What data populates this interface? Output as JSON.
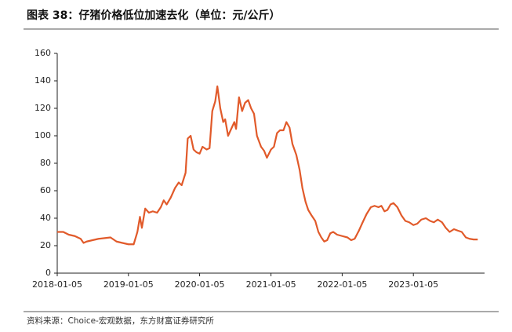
{
  "chart_data": {
    "type": "line",
    "title": "图表 38：仔猪价格低位加速去化（单位：元/公斤）",
    "source": "资料来源：Choice-宏观数据，东方财富证券研究所",
    "xlim": [
      "2018-01-05",
      "2024-01-05"
    ],
    "xticks": [
      "2018-01-05",
      "2019-01-05",
      "2020-01-05",
      "2021-01-05",
      "2022-01-05",
      "2023-01-05"
    ],
    "ylim": [
      0,
      160
    ],
    "yticks": [
      0,
      20,
      40,
      60,
      80,
      100,
      120,
      140,
      160
    ],
    "grid": false,
    "x": [
      "2018-01-05",
      "2018-02-05",
      "2018-03-05",
      "2018-04-05",
      "2018-05-05",
      "2018-05-20",
      "2018-06-05",
      "2018-07-05",
      "2018-08-05",
      "2018-09-05",
      "2018-10-05",
      "2018-11-05",
      "2018-12-05",
      "2019-01-05",
      "2019-02-01",
      "2019-02-20",
      "2019-03-05",
      "2019-03-15",
      "2019-04-01",
      "2019-04-20",
      "2019-05-10",
      "2019-06-01",
      "2019-06-20",
      "2019-07-05",
      "2019-07-20",
      "2019-08-10",
      "2019-09-01",
      "2019-09-20",
      "2019-10-05",
      "2019-10-25",
      "2019-11-05",
      "2019-11-20",
      "2019-12-05",
      "2019-12-20",
      "2020-01-05",
      "2020-01-20",
      "2020-02-10",
      "2020-02-25",
      "2020-03-10",
      "2020-03-25",
      "2020-04-05",
      "2020-04-20",
      "2020-05-05",
      "2020-05-15",
      "2020-05-30",
      "2020-06-15",
      "2020-07-01",
      "2020-07-10",
      "2020-07-25",
      "2020-08-10",
      "2020-08-25",
      "2020-09-10",
      "2020-09-25",
      "2020-10-10",
      "2020-10-25",
      "2020-11-15",
      "2020-12-01",
      "2020-12-15",
      "2021-01-05",
      "2021-01-20",
      "2021-02-05",
      "2021-02-20",
      "2021-03-10",
      "2021-03-25",
      "2021-04-10",
      "2021-04-25",
      "2021-05-15",
      "2021-06-01",
      "2021-06-15",
      "2021-07-01",
      "2021-07-15",
      "2021-08-01",
      "2021-08-20",
      "2021-09-05",
      "2021-09-20",
      "2021-10-05",
      "2021-10-20",
      "2021-11-05",
      "2021-11-20",
      "2021-12-10",
      "2022-01-05",
      "2022-02-01",
      "2022-02-20",
      "2022-03-10",
      "2022-04-01",
      "2022-04-20",
      "2022-05-10",
      "2022-06-01",
      "2022-06-20",
      "2022-07-10",
      "2022-07-25",
      "2022-08-10",
      "2022-08-25",
      "2022-09-10",
      "2022-09-25",
      "2022-10-15",
      "2022-11-05",
      "2022-11-25",
      "2022-12-15",
      "2023-01-05",
      "2023-01-25",
      "2023-02-15",
      "2023-03-10",
      "2023-04-01",
      "2023-04-20",
      "2023-05-10",
      "2023-06-01",
      "2023-06-20",
      "2023-07-10",
      "2023-08-01",
      "2023-08-20",
      "2023-09-10",
      "2023-10-01",
      "2023-10-20",
      "2023-11-10",
      "2023-12-01"
    ],
    "series": [
      {
        "name": "仔猪价格",
        "color": "#e15a2a",
        "values": [
          30,
          30,
          28,
          27,
          25,
          22,
          23,
          24,
          25,
          25.5,
          26,
          23,
          22,
          21,
          21,
          30,
          41,
          33,
          47,
          44,
          45,
          44,
          48,
          53,
          50,
          55,
          62,
          66,
          64,
          73,
          98,
          100,
          90,
          88,
          87,
          92,
          90,
          91,
          118,
          125,
          136,
          120,
          110,
          112,
          100,
          105,
          110,
          105,
          128,
          118,
          124,
          126,
          120,
          116,
          100,
          92,
          89,
          84,
          90,
          92,
          102,
          104,
          104,
          110,
          106,
          94,
          86,
          75,
          62,
          52,
          46,
          42,
          38,
          30,
          26,
          23,
          24,
          29,
          30,
          28,
          27,
          26,
          24,
          25,
          31,
          37,
          43,
          48,
          49,
          48,
          49,
          45,
          46,
          50,
          51,
          48,
          42,
          38,
          37,
          35,
          36,
          39,
          40,
          38,
          37,
          39,
          37,
          33,
          30,
          32,
          31,
          30,
          26,
          25,
          24.5,
          24.5
        ]
      }
    ]
  }
}
